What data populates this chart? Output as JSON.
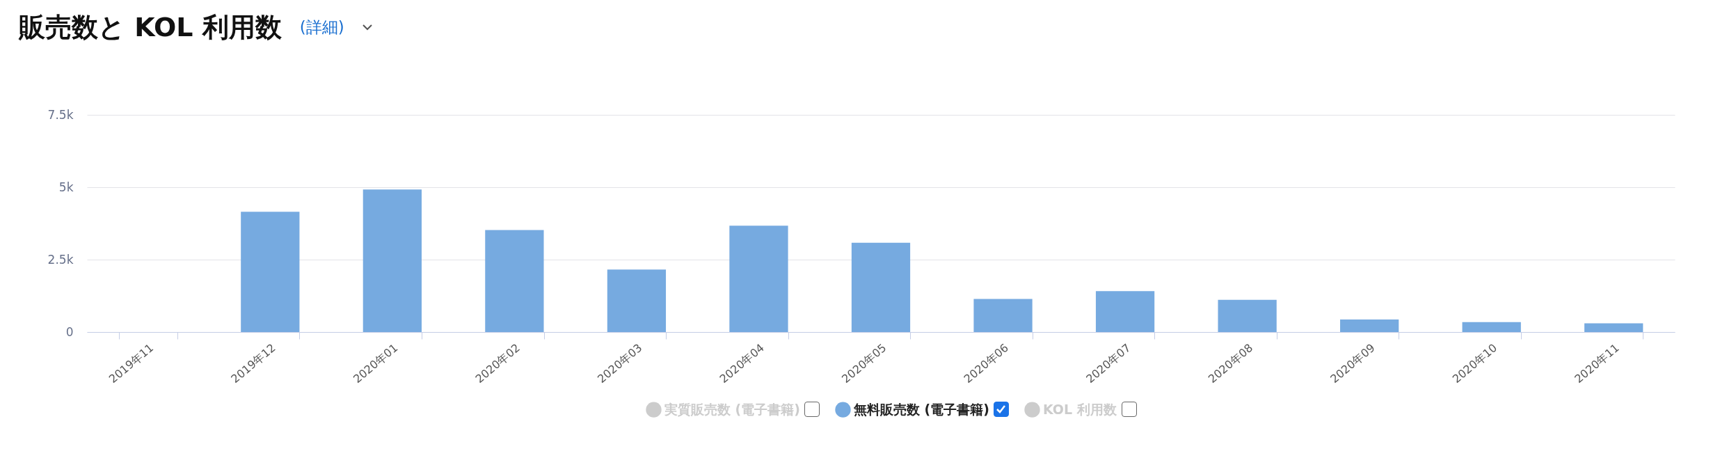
{
  "chart_data": {
    "type": "bar",
    "title": "販売数と KOL 利用数",
    "annotations": [
      "(詳細)"
    ],
    "categories": [
      "2019年11",
      "2019年12",
      "2020年01",
      "2020年02",
      "2020年03",
      "2020年04",
      "2020年05",
      "2020年06",
      "2020年07",
      "2020年08",
      "2020年09",
      "2020年10",
      "2020年11"
    ],
    "series": [
      {
        "name": "実質販売数 (電子書籍)",
        "color": "#cccccc",
        "values": [
          null,
          null,
          null,
          null,
          null,
          null,
          null,
          null,
          null,
          null,
          null,
          null,
          null
        ]
      },
      {
        "name": "無料販売数 (電子書籍)",
        "color": "#76aae0",
        "values": [
          0,
          4150,
          4920,
          3520,
          2160,
          3670,
          3080,
          1140,
          1410,
          1110,
          430,
          340,
          300
        ]
      },
      {
        "name": "KOL 利用数",
        "color": "#cccccc",
        "values": [
          null,
          null,
          null,
          null,
          null,
          null,
          null,
          null,
          null,
          null,
          null,
          null,
          null
        ]
      }
    ],
    "ylim": [
      0,
      7500
    ],
    "yticks": [
      {
        "value": 0,
        "label": "0"
      },
      {
        "value": 2500,
        "label": "2.5k"
      },
      {
        "value": 5000,
        "label": "5k"
      },
      {
        "value": 7500,
        "label": "7.5k"
      }
    ],
    "grid": "y",
    "legend": "bottom"
  }
}
